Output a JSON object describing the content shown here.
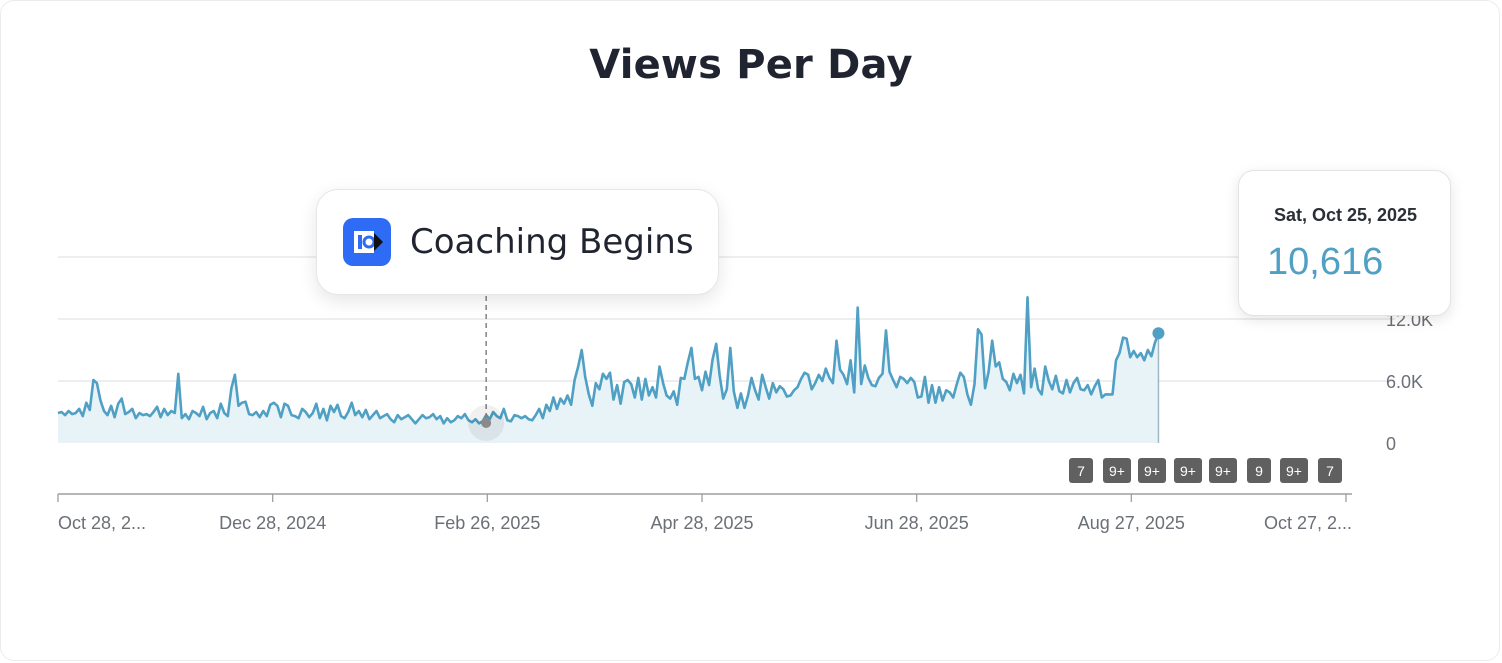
{
  "chart_data": {
    "type": "area",
    "title": "Views Per Day",
    "xlabel": "",
    "ylabel": "",
    "x_tick_labels": [
      "Oct 28, 2...",
      "Dec 28, 2024",
      "Feb 26, 2025",
      "Apr 28, 2025",
      "Jun 28, 2025",
      "Aug 27, 2025",
      "Oct 27, 2..."
    ],
    "y_tick_labels": [
      "0",
      "6.0K",
      "12.0K"
    ],
    "ylim": [
      0,
      18000
    ],
    "x_range": [
      "2024-10-28",
      "2025-10-27"
    ],
    "grid": true,
    "series": [
      {
        "values": [
          2900,
          3000,
          2700,
          3100,
          2800,
          2900,
          3300,
          2600,
          3900,
          3200,
          6100,
          5800,
          4100,
          3100,
          2700,
          3600,
          2500,
          3800,
          4300,
          2800,
          3000,
          3300,
          2400,
          2900,
          2700,
          2800,
          2600,
          3000,
          3500,
          2500,
          3300,
          2700,
          3100,
          2900,
          6700,
          2400,
          2800,
          2300,
          3100,
          2900,
          2600,
          3500,
          2300,
          2900,
          3100,
          2400,
          3800,
          2900,
          2600,
          5300,
          6600,
          3600,
          3900,
          4000,
          2800,
          2700,
          3000,
          2500,
          3100,
          2600,
          3700,
          3900,
          3600,
          2500,
          3800,
          3600,
          2700,
          2600,
          2400,
          3300,
          3000,
          2500,
          2900,
          3800,
          2400,
          3300,
          2200,
          3600,
          3000,
          3700,
          2600,
          2400,
          3000,
          3900,
          2700,
          3100,
          2500,
          3200,
          2300,
          2700,
          3100,
          2400,
          2600,
          2800,
          2300,
          2000,
          2700,
          2300,
          2500,
          2700,
          2300,
          1900,
          2300,
          2700,
          2400,
          2500,
          2800,
          2300,
          2600,
          1900,
          2400,
          2000,
          2200,
          2600,
          2400,
          2800,
          2200,
          2000,
          2300,
          1900,
          2100,
          2700,
          2300,
          3000,
          2600,
          2400,
          3300,
          2200,
          2100,
          2700,
          2600,
          2400,
          2600,
          2300,
          2200,
          2700,
          3300,
          2400,
          3700,
          3100,
          4400,
          3300,
          4300,
          3800,
          4600,
          3700,
          6100,
          7400,
          9000,
          6400,
          4700,
          3600,
          5800,
          5200,
          6700,
          6200,
          6800,
          4200,
          5600,
          3800,
          5900,
          6100,
          5700,
          4400,
          6300,
          4200,
          6200,
          4600,
          5400,
          4400,
          7400,
          5800,
          4600,
          4300,
          5000,
          3700,
          6300,
          6200,
          7800,
          9200,
          6200,
          6400,
          5100,
          6900,
          5600,
          8100,
          9600,
          6500,
          4300,
          5200,
          9200,
          5000,
          3400,
          4800,
          3400,
          4600,
          6300,
          5100,
          4200,
          6600,
          5400,
          4300,
          5800,
          4900,
          5500,
          5200,
          4500,
          4600,
          5100,
          5400,
          6200,
          6800,
          6600,
          5200,
          5800,
          6600,
          6000,
          7200,
          6300,
          5800,
          9900,
          7100,
          6600,
          5700,
          8000,
          4900,
          13100,
          5700,
          7500,
          6300,
          5600,
          5500,
          6300,
          6700,
          10900,
          6900,
          6100,
          5400,
          6400,
          6200,
          5800,
          6300,
          5900,
          4400,
          4500,
          6400,
          3900,
          5600,
          3900,
          5400,
          4100,
          5100,
          4900,
          4400,
          5700,
          6800,
          6400,
          4700,
          3700,
          5700,
          11000,
          10500,
          5300,
          6900,
          9900,
          7400,
          7800,
          6200,
          5900,
          5100,
          6700,
          5800,
          6600,
          4800,
          14100,
          5400,
          7200,
          5200,
          4700,
          7400,
          6000,
          5200,
          6500,
          5000,
          4800,
          6100,
          4900,
          5800,
          6300,
          5200,
          5100,
          5600,
          4700,
          5500,
          6100,
          4400,
          4700,
          4700,
          4700,
          8000,
          8700,
          10200,
          10100,
          8300,
          8900,
          8300,
          8700,
          8000,
          9000,
          8400,
          9700,
          10616
        ]
      }
    ],
    "annotation": {
      "label": "Coaching Begins",
      "date": "Feb 26, 2025"
    },
    "tooltip": {
      "date": "Sat, Oct 25, 2025",
      "value": "10,616"
    },
    "event_badges": [
      "7",
      "9+",
      "9+",
      "9+",
      "9+",
      "9",
      "9+",
      "7"
    ]
  },
  "colors": {
    "line": "#4fa0c4",
    "fill": "#e8f3f7",
    "axis": "#9e9e9e",
    "grid": "#e2e4e8",
    "badge": "#606060",
    "annotation_line": "#8a8a8a"
  },
  "icons": {
    "annotation_logo": "iq-logo-icon"
  }
}
